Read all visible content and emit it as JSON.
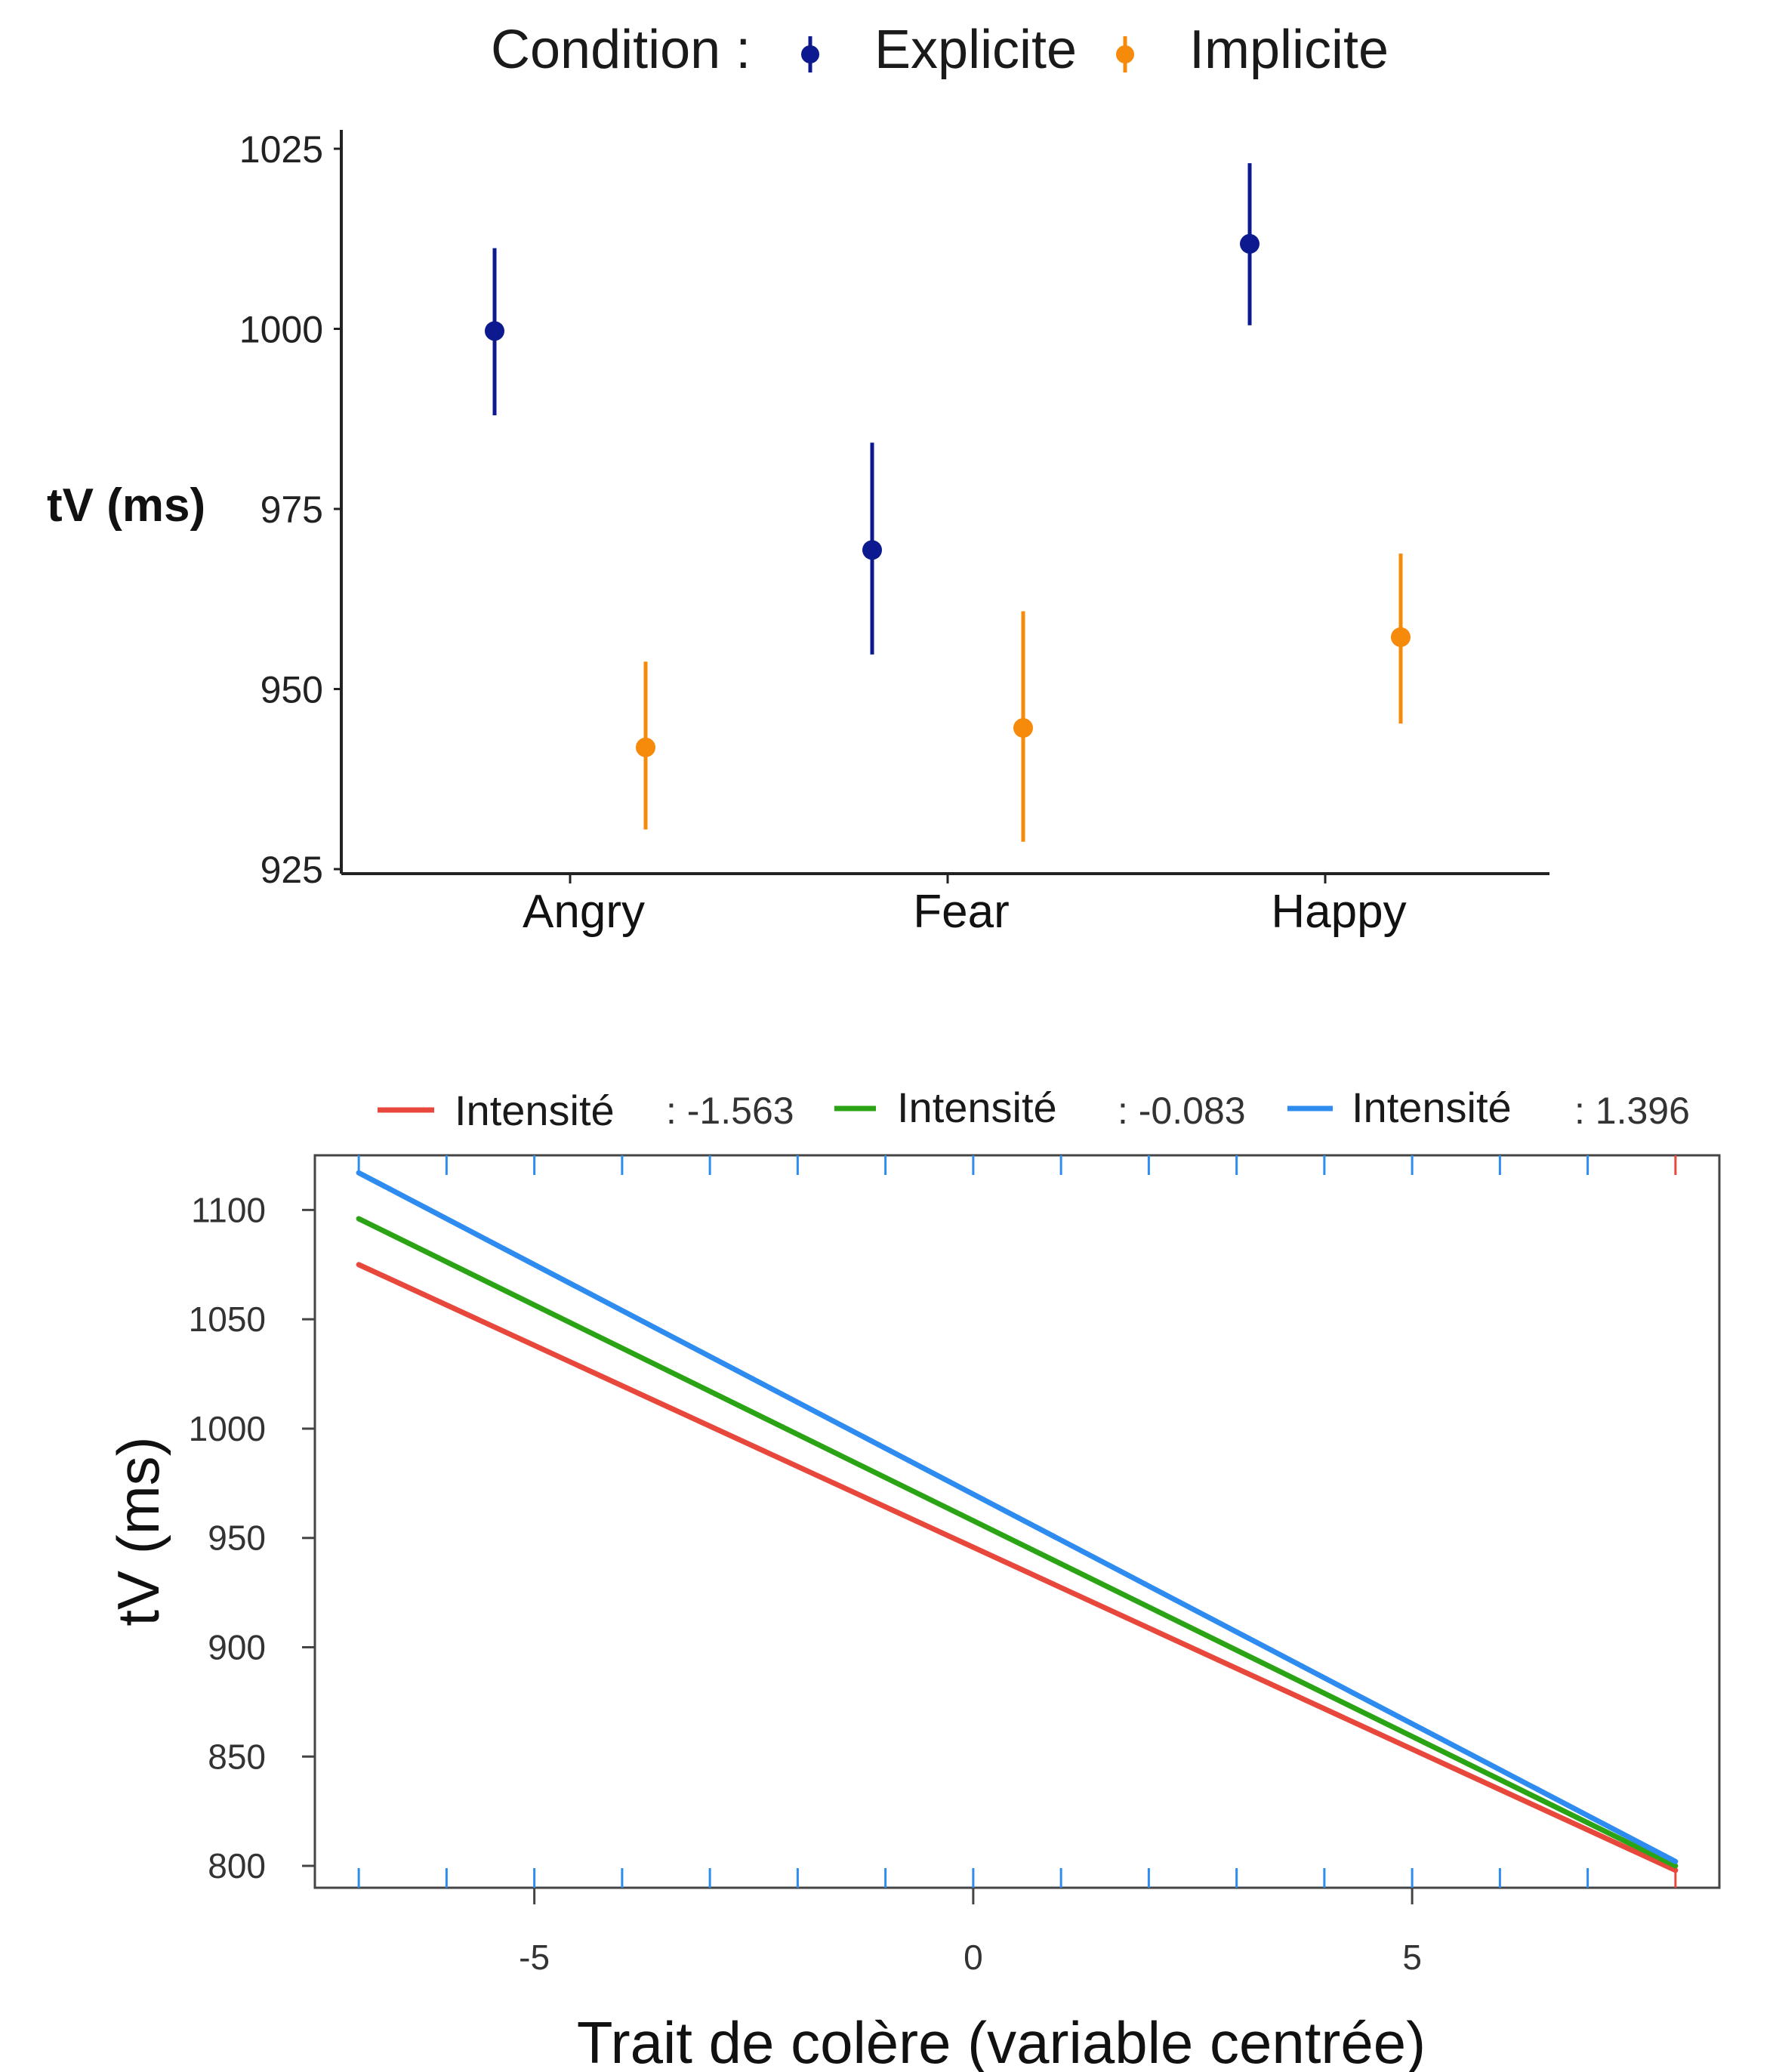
{
  "chart_data": [
    {
      "type": "scatter",
      "title": "",
      "xlabel": "",
      "ylabel": "tV (ms)",
      "ylim": [
        925,
        1025
      ],
      "yticks": [
        "1025",
        "1000",
        "975",
        "950",
        "925"
      ],
      "categories": [
        "Angry",
        "Fear",
        "Happy"
      ],
      "legend": {
        "title": "Condition :",
        "placement": "top"
      },
      "series": [
        {
          "name": "Explicite",
          "color": "#0d1a8f",
          "values": [
            999.7,
            969.3,
            1011.8
          ],
          "error_low": [
            988.0,
            954.8,
            1000.5
          ],
          "error_high": [
            1011.2,
            984.2,
            1023.0
          ]
        },
        {
          "name": "Implicite",
          "color": "#f58a0b",
          "values": [
            941.9,
            944.6,
            957.2
          ],
          "error_low": [
            930.5,
            928.8,
            945.2
          ],
          "error_high": [
            953.8,
            960.8,
            968.8
          ]
        }
      ]
    },
    {
      "type": "line",
      "title": "",
      "xlabel": "Trait de colère (variable centrée)",
      "ylabel": "tV (ms)",
      "xlim": [
        -7.5,
        8.5
      ],
      "ylim": [
        790,
        1125
      ],
      "xticks": [
        "-5",
        "0",
        "5"
      ],
      "yticks": [
        "1100",
        "1050",
        "1000",
        "950",
        "900",
        "850",
        "800"
      ],
      "legend": {
        "placement": "top"
      },
      "series": [
        {
          "name": "Intensité",
          "value_label": ": -1.563",
          "color": "#e8483b",
          "x": [
            -7,
            8
          ],
          "y": [
            1075,
            798
          ]
        },
        {
          "name": "Intensité",
          "value_label": ": -0.083",
          "color": "#2aa415",
          "x": [
            -7,
            8
          ],
          "y": [
            1096,
            800
          ]
        },
        {
          "name": "Intensité",
          "value_label": ": 1.396",
          "color": "#2e8cf0",
          "x": [
            -7,
            8
          ],
          "y": [
            1117,
            802
          ]
        }
      ]
    }
  ]
}
